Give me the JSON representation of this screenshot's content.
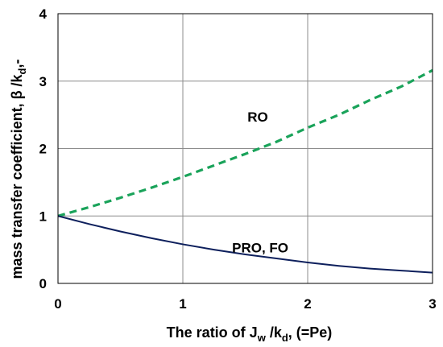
{
  "chart_data": {
    "type": "line",
    "title": "",
    "xlabel": "The ratio of Jw /kd, (=Pe)",
    "ylabel": "mass transfer coefficient, β /kd,-",
    "xlim": [
      0,
      3
    ],
    "ylim": [
      0,
      4
    ],
    "xticks": [
      "0",
      "1",
      "2",
      "3"
    ],
    "yticks": [
      "0",
      "1",
      "2",
      "3",
      "4"
    ],
    "grid": true,
    "series": [
      {
        "name": "RO",
        "color": "#1aa35a",
        "style": "dashed",
        "x": [
          0,
          0.25,
          0.5,
          0.75,
          1.0,
          1.25,
          1.5,
          1.75,
          2.0,
          2.25,
          2.5,
          2.75,
          3.0
        ],
        "y": [
          1.0,
          1.13,
          1.27,
          1.42,
          1.58,
          1.75,
          1.92,
          2.1,
          2.31,
          2.5,
          2.72,
          2.92,
          3.16
        ]
      },
      {
        "name": "PRO, FO",
        "color": "#0d1f5c",
        "style": "solid",
        "x": [
          0,
          0.25,
          0.5,
          0.75,
          1.0,
          1.25,
          1.5,
          1.75,
          2.0,
          2.25,
          2.5,
          2.75,
          3.0
        ],
        "y": [
          1.0,
          0.88,
          0.77,
          0.67,
          0.58,
          0.5,
          0.43,
          0.37,
          0.31,
          0.26,
          0.22,
          0.19,
          0.16
        ]
      }
    ]
  }
}
